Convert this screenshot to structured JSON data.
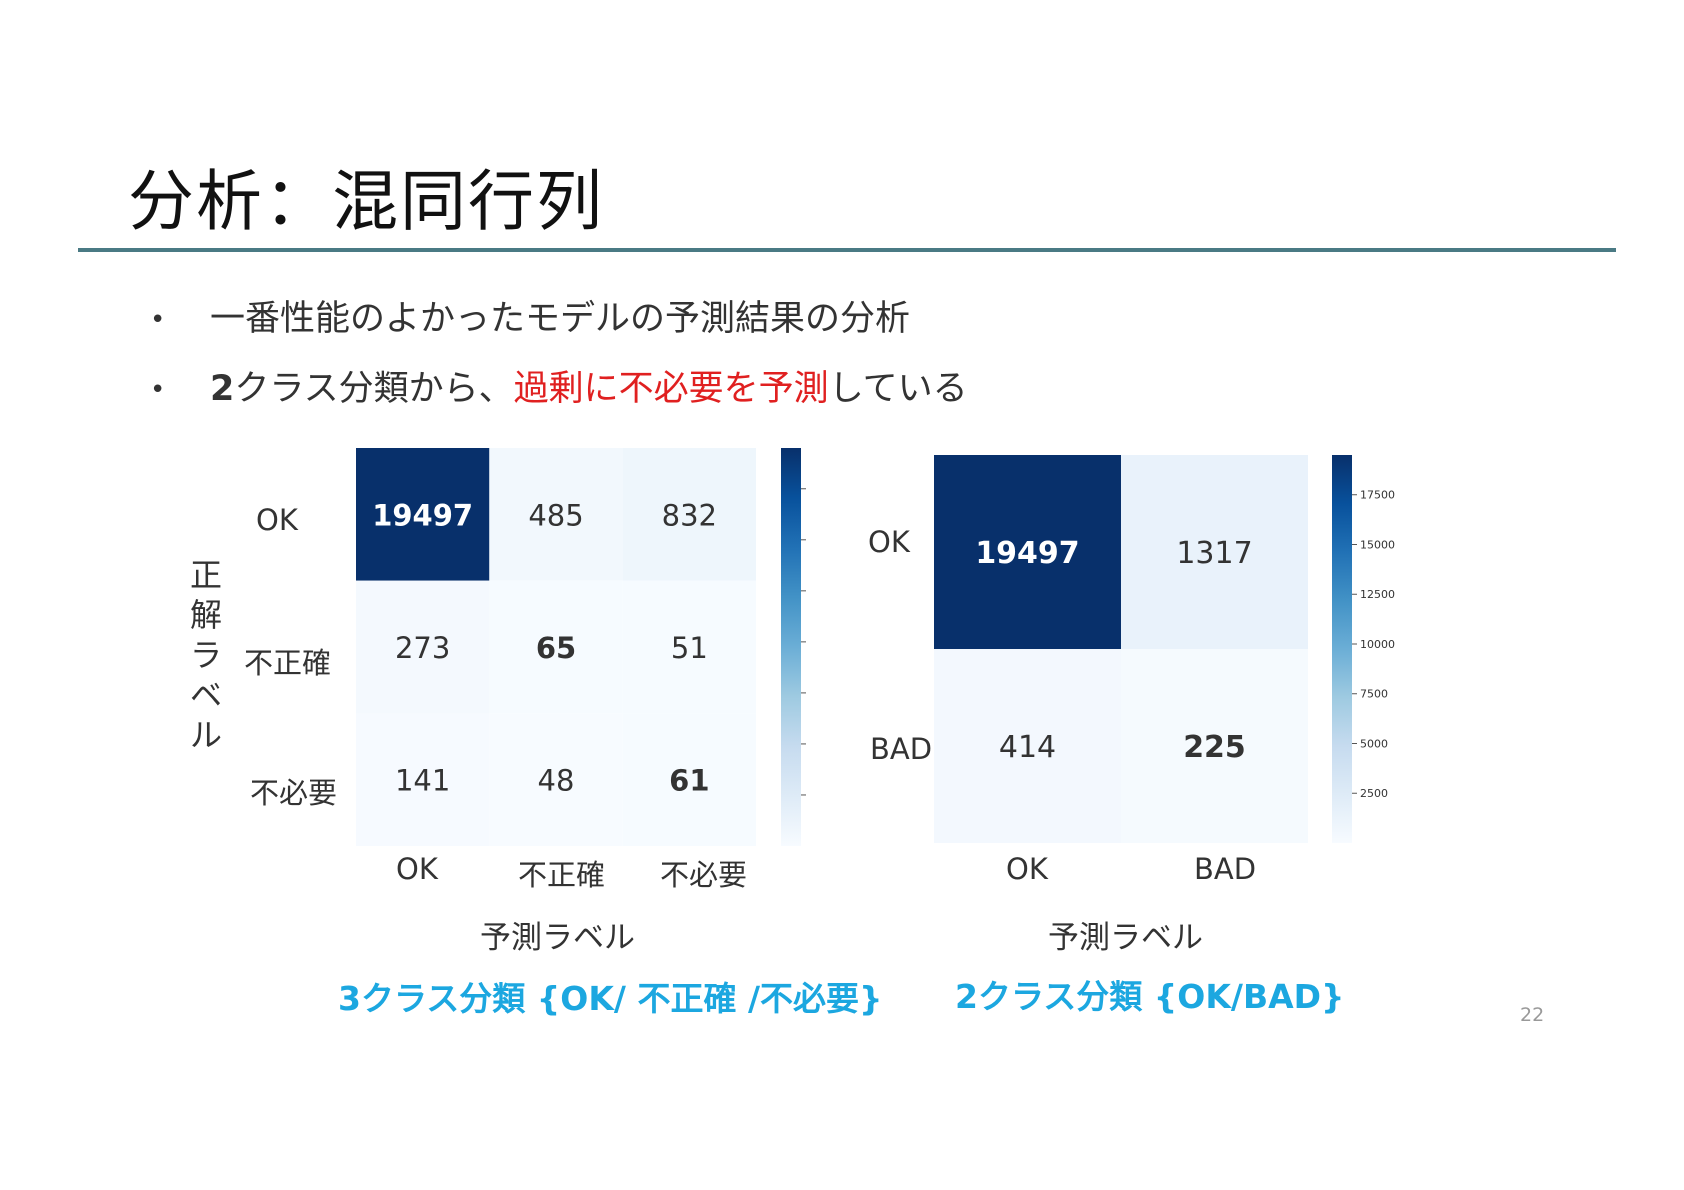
{
  "slide": {
    "title": "分析：混同行列",
    "bullets": [
      {
        "parts": [
          {
            "text": "一番性能のよかったモデルの予測結果の分析",
            "style": "normal"
          }
        ]
      },
      {
        "parts": [
          {
            "text": "2",
            "style": "bold"
          },
          {
            "text": "クラス分類から、",
            "style": "normal"
          },
          {
            "text": "過剰に不必要を予測",
            "style": "highlight"
          },
          {
            "text": "している",
            "style": "normal"
          }
        ]
      }
    ],
    "bullet_symbol": "•",
    "highlight_color": "#e02020",
    "page_number": "22"
  },
  "chart_data": [
    {
      "type": "heatmap",
      "title": "",
      "caption": "3クラス分類 {OK/ 不正確 /不必要}",
      "xlabel": "予測ラベル",
      "ylabel": "正解ラベル",
      "x_categories": [
        "OK",
        "不正確",
        "不必要"
      ],
      "y_categories": [
        "OK",
        "不正確",
        "不必要"
      ],
      "values": [
        [
          19497,
          485,
          832
        ],
        [
          273,
          65,
          51
        ],
        [
          141,
          48,
          61
        ]
      ],
      "bold_cells": [
        [
          0,
          0
        ],
        [
          1,
          1
        ],
        [
          2,
          2
        ]
      ],
      "colormap": "Blues",
      "colorbar_ticks": [
        2500,
        5000,
        7500,
        10000,
        12500,
        15000,
        17500
      ],
      "colorbar_range": [
        0,
        19497
      ]
    },
    {
      "type": "heatmap",
      "title": "",
      "caption": "2クラス分類 {OK/BAD}",
      "xlabel": "予測ラベル",
      "ylabel": "",
      "x_categories": [
        "OK",
        "BAD"
      ],
      "y_categories": [
        "OK",
        "BAD"
      ],
      "values": [
        [
          19497,
          1317
        ],
        [
          414,
          225
        ]
      ],
      "bold_cells": [
        [
          0,
          0
        ],
        [
          1,
          1
        ]
      ],
      "colormap": "Blues",
      "colorbar_ticks": [
        2500,
        5000,
        7500,
        10000,
        12500,
        15000,
        17500
      ],
      "colorbar_range": [
        0,
        19497
      ]
    }
  ]
}
